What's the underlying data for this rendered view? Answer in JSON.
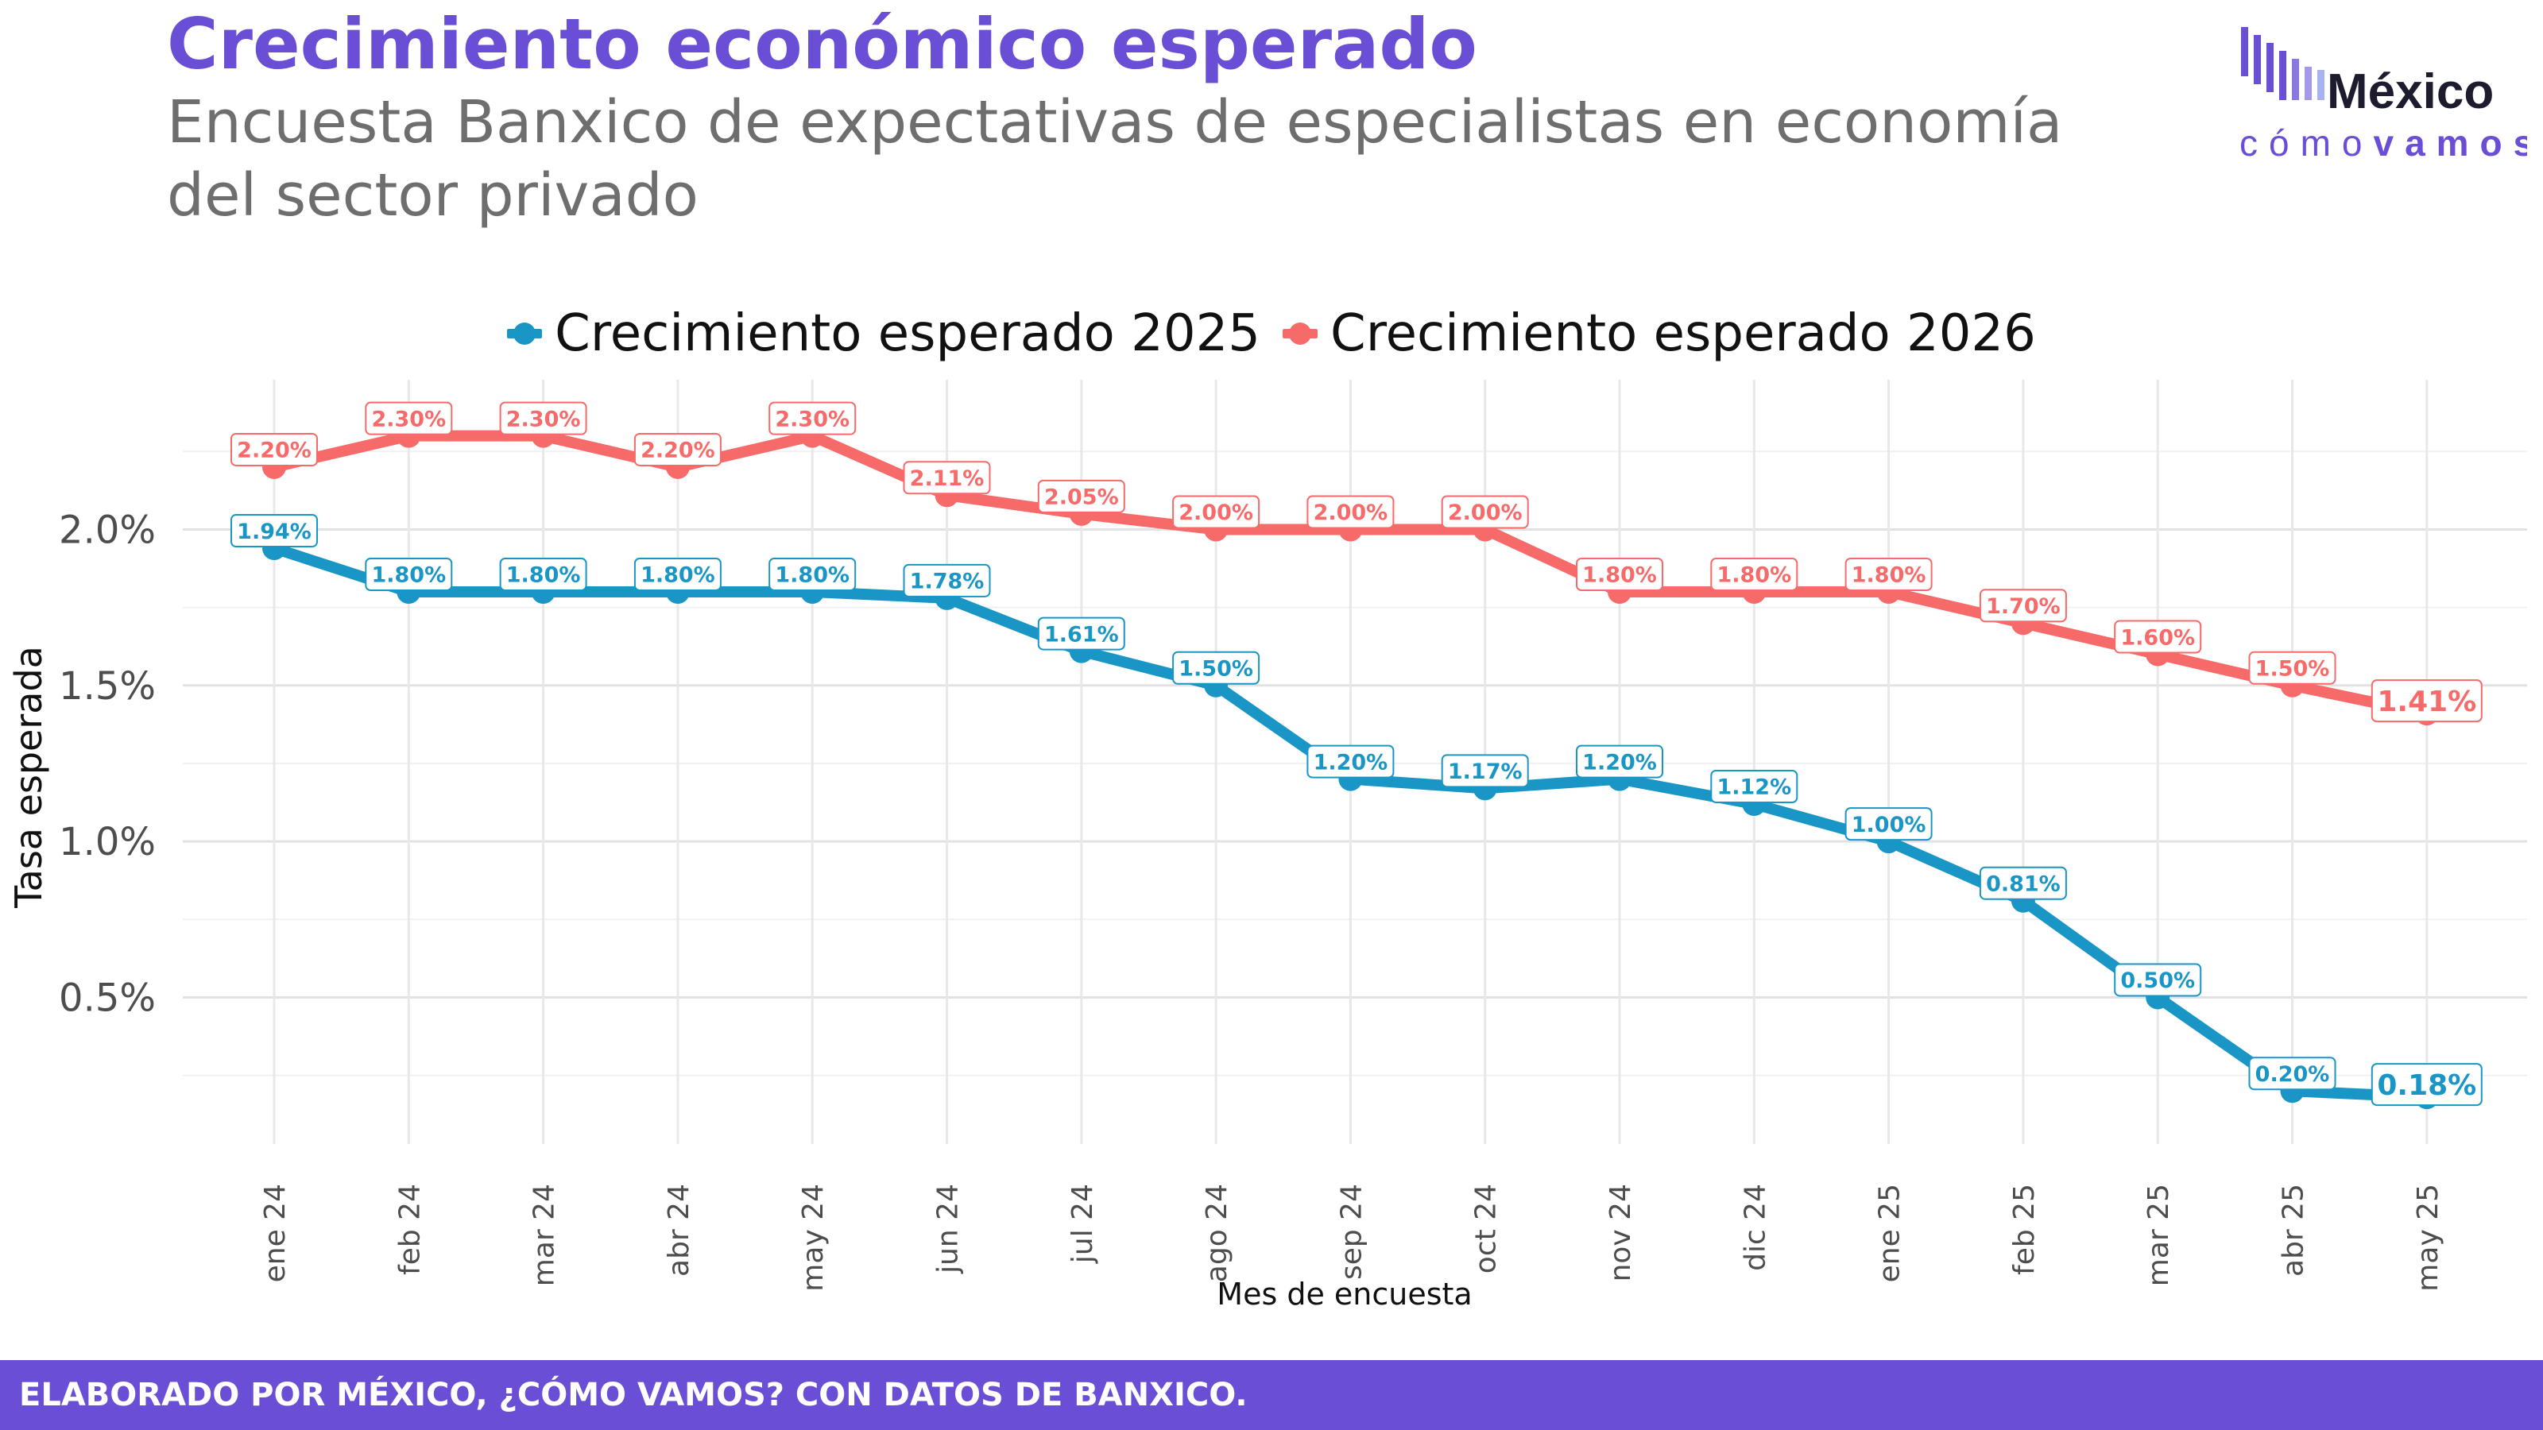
{
  "header": {
    "title": "Crecimiento económico esperado",
    "subtitle": "Encuesta Banxico de expectativas de especialistas en economía del sector privado"
  },
  "logo": {
    "line1": "México",
    "line2_light": "cómo",
    "line2_bold": "vamos"
  },
  "footer": {
    "text": "ELABORADO POR MÉXICO, ¿CÓMO VAMOS? CON DATOS DE BANXICO."
  },
  "chart_data": {
    "type": "line",
    "title": "Crecimiento económico esperado",
    "xlabel": "Mes de encuesta",
    "ylabel": "Tasa esperada",
    "categories": [
      "ene 24",
      "feb 24",
      "mar 24",
      "abr 24",
      "may 24",
      "jun 24",
      "jul 24",
      "ago 24",
      "sep 24",
      "oct 24",
      "nov 24",
      "dic 24",
      "ene 25",
      "feb 25",
      "mar 25",
      "abr 25",
      "may 25"
    ],
    "y_ticks": [
      {
        "value": 0.5,
        "label": "0.5%"
      },
      {
        "value": 1.0,
        "label": "1.0%"
      },
      {
        "value": 1.5,
        "label": "1.5%"
      },
      {
        "value": 2.0,
        "label": "2.0%"
      }
    ],
    "ylim": [
      0.03,
      2.48
    ],
    "grid": true,
    "legend_position": "top",
    "series": [
      {
        "name": "Crecimiento esperado 2025",
        "color": "#1a96c6",
        "values": [
          1.94,
          1.8,
          1.8,
          1.8,
          1.8,
          1.78,
          1.61,
          1.5,
          1.2,
          1.17,
          1.2,
          1.12,
          1.0,
          0.81,
          0.5,
          0.2,
          0.18
        ],
        "labels": [
          "1.94%",
          "1.80%",
          "1.80%",
          "1.80%",
          "1.80%",
          "1.78%",
          "1.61%",
          "1.50%",
          "1.20%",
          "1.17%",
          "1.20%",
          "1.12%",
          "1.00%",
          "0.81%",
          "0.50%",
          "0.20%",
          "0.18%"
        ]
      },
      {
        "name": "Crecimiento esperado 2026",
        "color": "#f76a6a",
        "values": [
          2.2,
          2.3,
          2.3,
          2.2,
          2.3,
          2.11,
          2.05,
          2.0,
          2.0,
          2.0,
          1.8,
          1.8,
          1.8,
          1.7,
          1.6,
          1.5,
          1.41
        ],
        "labels": [
          "2.20%",
          "2.30%",
          "2.30%",
          "2.20%",
          "2.30%",
          "2.11%",
          "2.05%",
          "2.00%",
          "2.00%",
          "2.00%",
          "1.80%",
          "1.80%",
          "1.80%",
          "1.70%",
          "1.60%",
          "1.50%",
          "1.41%"
        ]
      }
    ]
  }
}
